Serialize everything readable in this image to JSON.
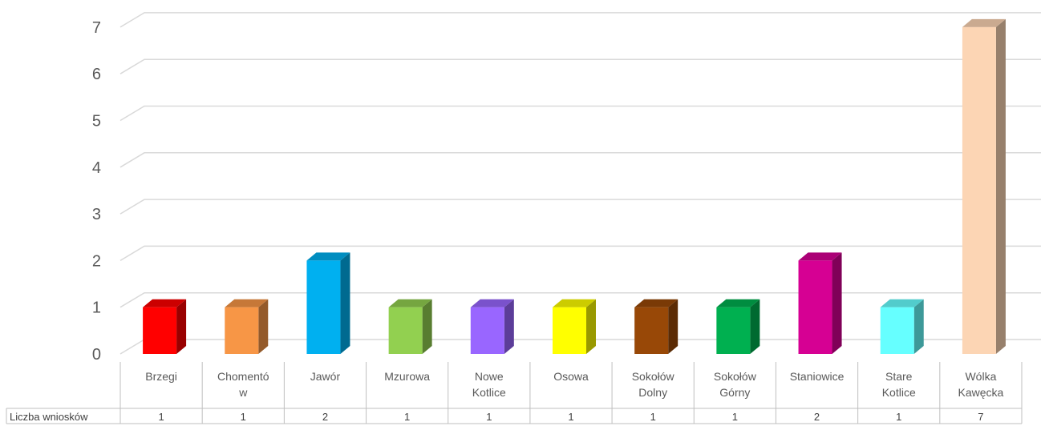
{
  "chart_data": {
    "type": "bar",
    "style": "3d-column-with-data-table",
    "categories": [
      [
        "Brzegi"
      ],
      [
        "Chomentó",
        "w"
      ],
      [
        "Jawór"
      ],
      [
        "Mzurowa"
      ],
      [
        "Nowe",
        "Kotlice"
      ],
      [
        "Osowa"
      ],
      [
        "Sokołów",
        "Dolny"
      ],
      [
        "Sokołów",
        "Górny"
      ],
      [
        "Staniowice"
      ],
      [
        "Stare",
        "Kotlice"
      ],
      [
        "Wólka",
        "Kawęcka"
      ]
    ],
    "series": [
      {
        "name": "Liczba wniosków",
        "values": [
          1,
          1,
          2,
          1,
          1,
          1,
          1,
          1,
          2,
          1,
          7
        ]
      }
    ],
    "y_ticks": [
      "0",
      "1",
      "2",
      "3",
      "4",
      "5",
      "6",
      "7"
    ],
    "ylim": [
      0,
      7
    ],
    "grid": true,
    "legend": "none",
    "colors": [
      "#ff0000",
      "#f79646",
      "#00b0f0",
      "#92d050",
      "#9966ff",
      "#ffff00",
      "#984807",
      "#00b050",
      "#d60093",
      "#66ffff",
      "#fcd5b4"
    ],
    "data_table": {
      "row_header": "Liczba wniosków",
      "cells": [
        "1",
        "1",
        "2",
        "1",
        "1",
        "1",
        "1",
        "1",
        "2",
        "1",
        "7"
      ]
    }
  }
}
